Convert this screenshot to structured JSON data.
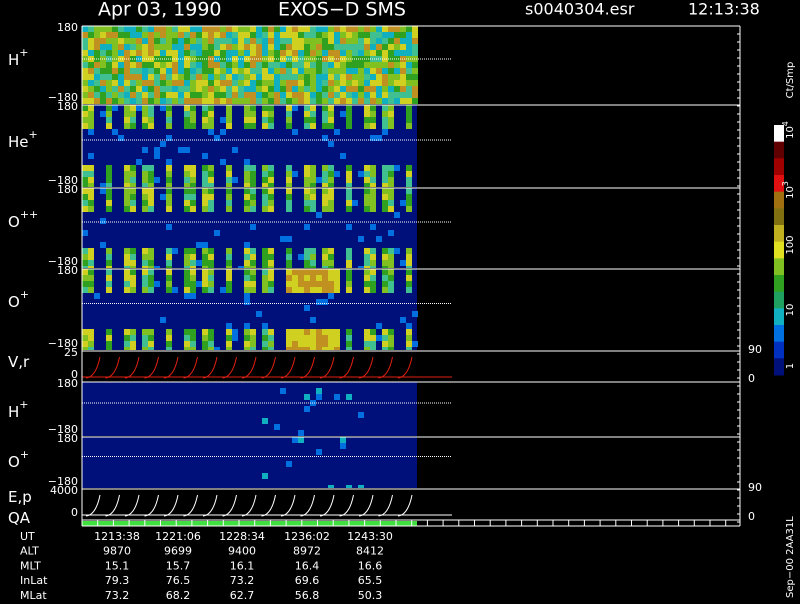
{
  "header": {
    "date": "Apr 03, 1990",
    "instrument": "EXOS−D SMS",
    "file": "s0040304.esr",
    "time": "12:13:38"
  },
  "panels": [
    {
      "label": "H",
      "charge": "+",
      "ticks": [
        "180",
        "−180"
      ]
    },
    {
      "label": "He",
      "charge": "+",
      "ticks": [
        "180",
        "−180"
      ]
    },
    {
      "label": "O",
      "charge": "++",
      "ticks": [
        "180",
        "−180"
      ]
    },
    {
      "label": "O",
      "charge": "+",
      "ticks": [
        "180",
        "−180"
      ]
    },
    {
      "label": "V,r",
      "ticks": [
        "25",
        "0"
      ],
      "right_ticks": [
        "90",
        "0"
      ]
    },
    {
      "label": "H",
      "charge": "+",
      "ticks": [
        "180",
        "−180"
      ]
    },
    {
      "label": "O",
      "charge": "+",
      "ticks": [
        "180",
        "−180"
      ]
    },
    {
      "label": "E,p",
      "ticks": [
        "4000",
        "0"
      ],
      "right_ticks": [
        "90",
        "0"
      ]
    },
    {
      "label": "QA"
    }
  ],
  "time_table": {
    "rows": [
      [
        "UT",
        "1213:38",
        "1221:06",
        "1228:34",
        "1236:02",
        "1243:30"
      ],
      [
        "ALT",
        "9870",
        "9699",
        "9400",
        "8972",
        "8412"
      ],
      [
        "MLT",
        "15.1",
        "15.7",
        "16.1",
        "16.4",
        "16.6"
      ],
      [
        "InLat",
        "79.3",
        "76.5",
        "73.2",
        "69.6",
        "65.5"
      ],
      [
        "MLat",
        "73.2",
        "68.2",
        "62.7",
        "56.8",
        "50.3"
      ]
    ]
  },
  "colorbar": {
    "unit": "Ct/Smp",
    "labels": [
      {
        "base": "1"
      },
      {
        "base": "10"
      },
      {
        "base": "100"
      },
      {
        "base": "10",
        "exp": "3"
      },
      {
        "base": "10",
        "exp": "4"
      }
    ]
  },
  "footer": "Sep−00 2AA31L"
}
